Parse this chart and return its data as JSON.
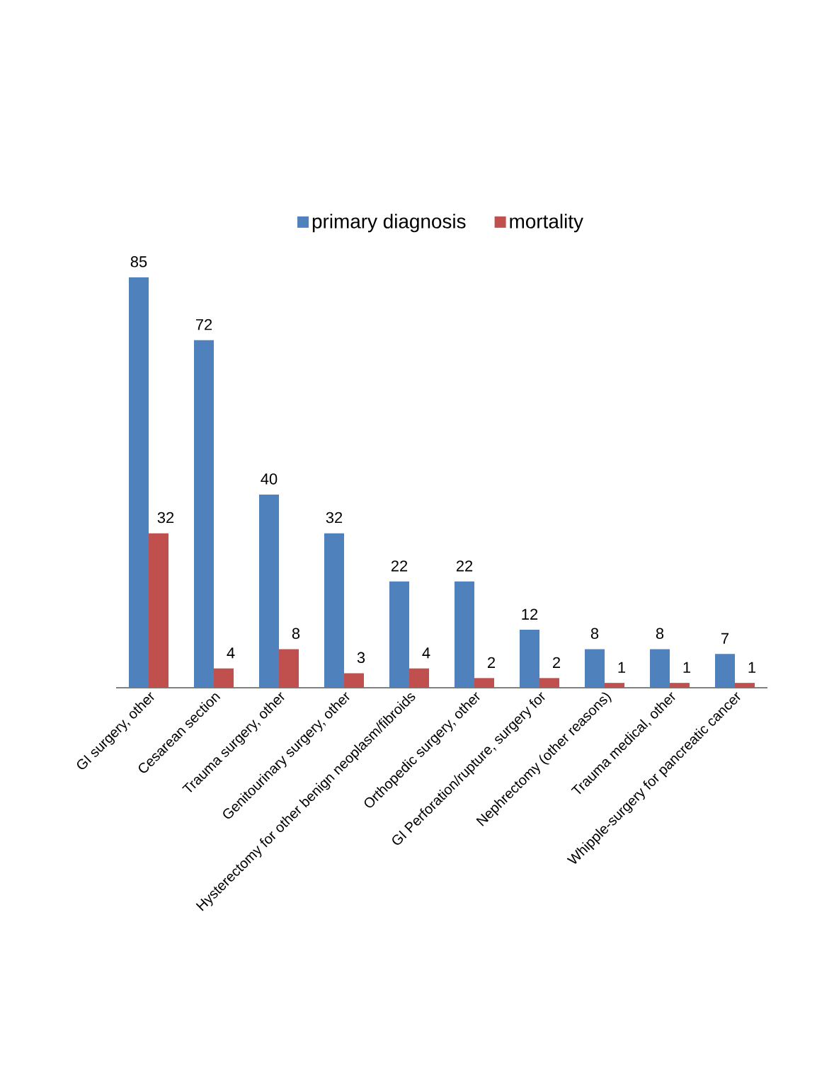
{
  "chart_data": {
    "type": "bar",
    "categories": [
      "GI surgery, other",
      "Cesarean section",
      "Trauma surgery, other",
      "Genitourinary surgery, other",
      "Hysterectomy for other benign neoplasm/fibroids",
      "Orthopedic surgery, other",
      "GI Perforation/rupture, surgery for",
      "Nephrectomy (other reasons)",
      "Trauma medical, other",
      "Whipple-surgery for pancreatic cancer"
    ],
    "series": [
      {
        "name": "primary diagnosis",
        "color": "#4f81bd",
        "values": [
          85,
          72,
          40,
          32,
          22,
          22,
          12,
          8,
          8,
          7
        ]
      },
      {
        "name": "mortality",
        "color": "#c0504d",
        "values": [
          32,
          4,
          8,
          3,
          4,
          2,
          2,
          1,
          1,
          1
        ]
      }
    ],
    "data_labels": true,
    "legend": "top"
  }
}
